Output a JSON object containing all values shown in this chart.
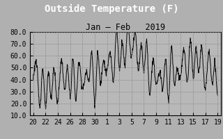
{
  "title": "Outside Temperature (F)",
  "subtitle": "Jan – Feb   2019",
  "fig_bg_color": "#b0b0b0",
  "title_bg_color": "#000000",
  "title_text_color": "#ffffff",
  "plot_bg_color": "#b8b8b8",
  "line_color": "#000000",
  "grid_color": "#888888",
  "text_color": "#000000",
  "ylim": [
    10.0,
    80.0
  ],
  "yticks": [
    10.0,
    20.0,
    30.0,
    40.0,
    50.0,
    60.0,
    70.0,
    80.0
  ],
  "xtick_labels": [
    "20",
    "22",
    "24",
    "26",
    "28",
    "30",
    "1",
    "3",
    "5",
    "7",
    "9",
    "11",
    "13",
    "15",
    "17",
    "19"
  ],
  "xtick_positions": [
    0,
    2,
    4,
    6,
    8,
    10,
    12,
    14,
    16,
    18,
    20,
    22,
    24,
    26,
    28,
    30
  ],
  "font_family": "monospace",
  "title_fontsize": 10,
  "subtitle_fontsize": 8.5,
  "tick_fontsize": 7
}
